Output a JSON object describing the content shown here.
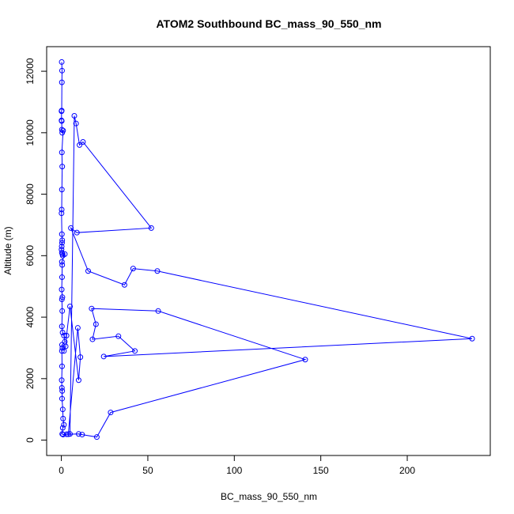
{
  "chart_data": {
    "type": "line",
    "title": "ATOM2 Southbound BC_mass_90_550_nm",
    "xlabel": "BC_mass_90_550_nm",
    "ylabel": "Altitude (m)",
    "xlim": [
      -8.5,
      248.0
    ],
    "ylim": [
      -500,
      12800
    ],
    "xticks": [
      0,
      50,
      100,
      150,
      200
    ],
    "yticks": [
      0,
      2000,
      4000,
      6000,
      8000,
      10000,
      12000
    ],
    "grid": false,
    "legend": "none",
    "series": [
      {
        "color": "#0000ff",
        "marker": "open-circle",
        "points": [
          [
            0.2,
            12300
          ],
          [
            0.4,
            12020
          ],
          [
            0.3,
            11640
          ],
          [
            0.2,
            10720
          ],
          [
            0.1,
            10700
          ],
          [
            0.1,
            10400
          ],
          [
            0.2,
            10380
          ],
          [
            0.3,
            10100
          ],
          [
            0.5,
            10000
          ],
          [
            1.0,
            10070
          ],
          [
            0.3,
            9360
          ],
          [
            0.5,
            8900
          ],
          [
            0.3,
            8150
          ],
          [
            0.2,
            7500
          ],
          [
            0.1,
            7380
          ],
          [
            0.3,
            6700
          ],
          [
            0.5,
            6500
          ],
          [
            0.4,
            6420
          ],
          [
            0.2,
            6300
          ],
          [
            0.1,
            6200
          ],
          [
            0.3,
            6100
          ],
          [
            0.6,
            6050
          ],
          [
            0.8,
            6000
          ],
          [
            2.0,
            6050
          ],
          [
            0.3,
            5800
          ],
          [
            0.5,
            5700
          ],
          [
            0.4,
            5300
          ],
          [
            0.2,
            4900
          ],
          [
            0.6,
            4650
          ],
          [
            0.3,
            4580
          ],
          [
            0.5,
            4200
          ],
          [
            0.3,
            3700
          ],
          [
            0.7,
            3500
          ],
          [
            1.5,
            3400
          ],
          [
            2.0,
            3200
          ],
          [
            0.4,
            3100
          ],
          [
            0.6,
            3000
          ],
          [
            0.3,
            2900
          ],
          [
            0.4,
            2400
          ],
          [
            0.2,
            1950
          ],
          [
            0.3,
            1700
          ],
          [
            0.5,
            1600
          ],
          [
            0.4,
            1350
          ],
          [
            0.8,
            1000
          ],
          [
            1.0,
            700
          ],
          [
            1.5,
            500
          ],
          [
            0.8,
            400
          ],
          [
            0.5,
            200
          ],
          [
            1.0,
            180
          ],
          [
            3.0,
            190
          ],
          [
            5.0,
            200
          ],
          [
            7.5,
            10550
          ],
          [
            8.5,
            10300
          ],
          [
            10.5,
            9600
          ],
          [
            12.5,
            9700
          ],
          [
            52.0,
            6900
          ],
          [
            9.0,
            6750
          ],
          [
            5.5,
            6900
          ],
          [
            15.5,
            5500
          ],
          [
            36.5,
            5050
          ],
          [
            41.5,
            5580
          ],
          [
            55.5,
            5500
          ],
          [
            237.5,
            3300
          ],
          [
            24.5,
            2720
          ],
          [
            42.5,
            2900
          ],
          [
            33.0,
            3380
          ],
          [
            18.0,
            3280
          ],
          [
            20.0,
            3770
          ],
          [
            17.5,
            4280
          ],
          [
            56.0,
            4200
          ],
          [
            141.0,
            2620
          ],
          [
            28.5,
            900
          ],
          [
            20.5,
            100
          ],
          [
            12.0,
            180
          ],
          [
            10.0,
            200
          ],
          [
            4.0,
            190
          ],
          [
            9.5,
            3650
          ],
          [
            11.0,
            2700
          ],
          [
            10.0,
            1950
          ],
          [
            5.0,
            4350
          ],
          [
            3.0,
            3400
          ],
          [
            2.5,
            3050
          ],
          [
            1.5,
            2900
          ]
        ]
      }
    ]
  }
}
